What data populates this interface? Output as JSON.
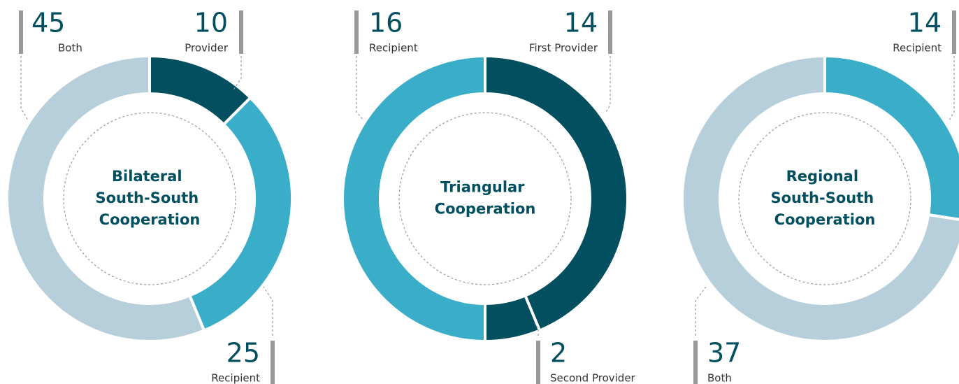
{
  "chart_data": [
    {
      "type": "donut",
      "title": "Bilateral South-South Cooperation",
      "categories": [
        "Provider",
        "Recipient",
        "Both"
      ],
      "values": [
        10,
        25,
        45
      ],
      "colors": [
        "#02505f",
        "#3aaec8",
        "#b6cfda"
      ]
    },
    {
      "type": "donut",
      "title": "Triangular Cooperation",
      "categories": [
        "First Provider",
        "Second Provider",
        "Recipient"
      ],
      "values": [
        14,
        2,
        16
      ],
      "colors": [
        "#02505f",
        "#02505f",
        "#3aaec8"
      ]
    },
    {
      "type": "donut",
      "title": "Regional South-South Cooperation",
      "categories": [
        "Recipient",
        "Both"
      ],
      "values": [
        14,
        37
      ],
      "colors": [
        "#3aaec8",
        "#b6cfda"
      ]
    }
  ]
}
